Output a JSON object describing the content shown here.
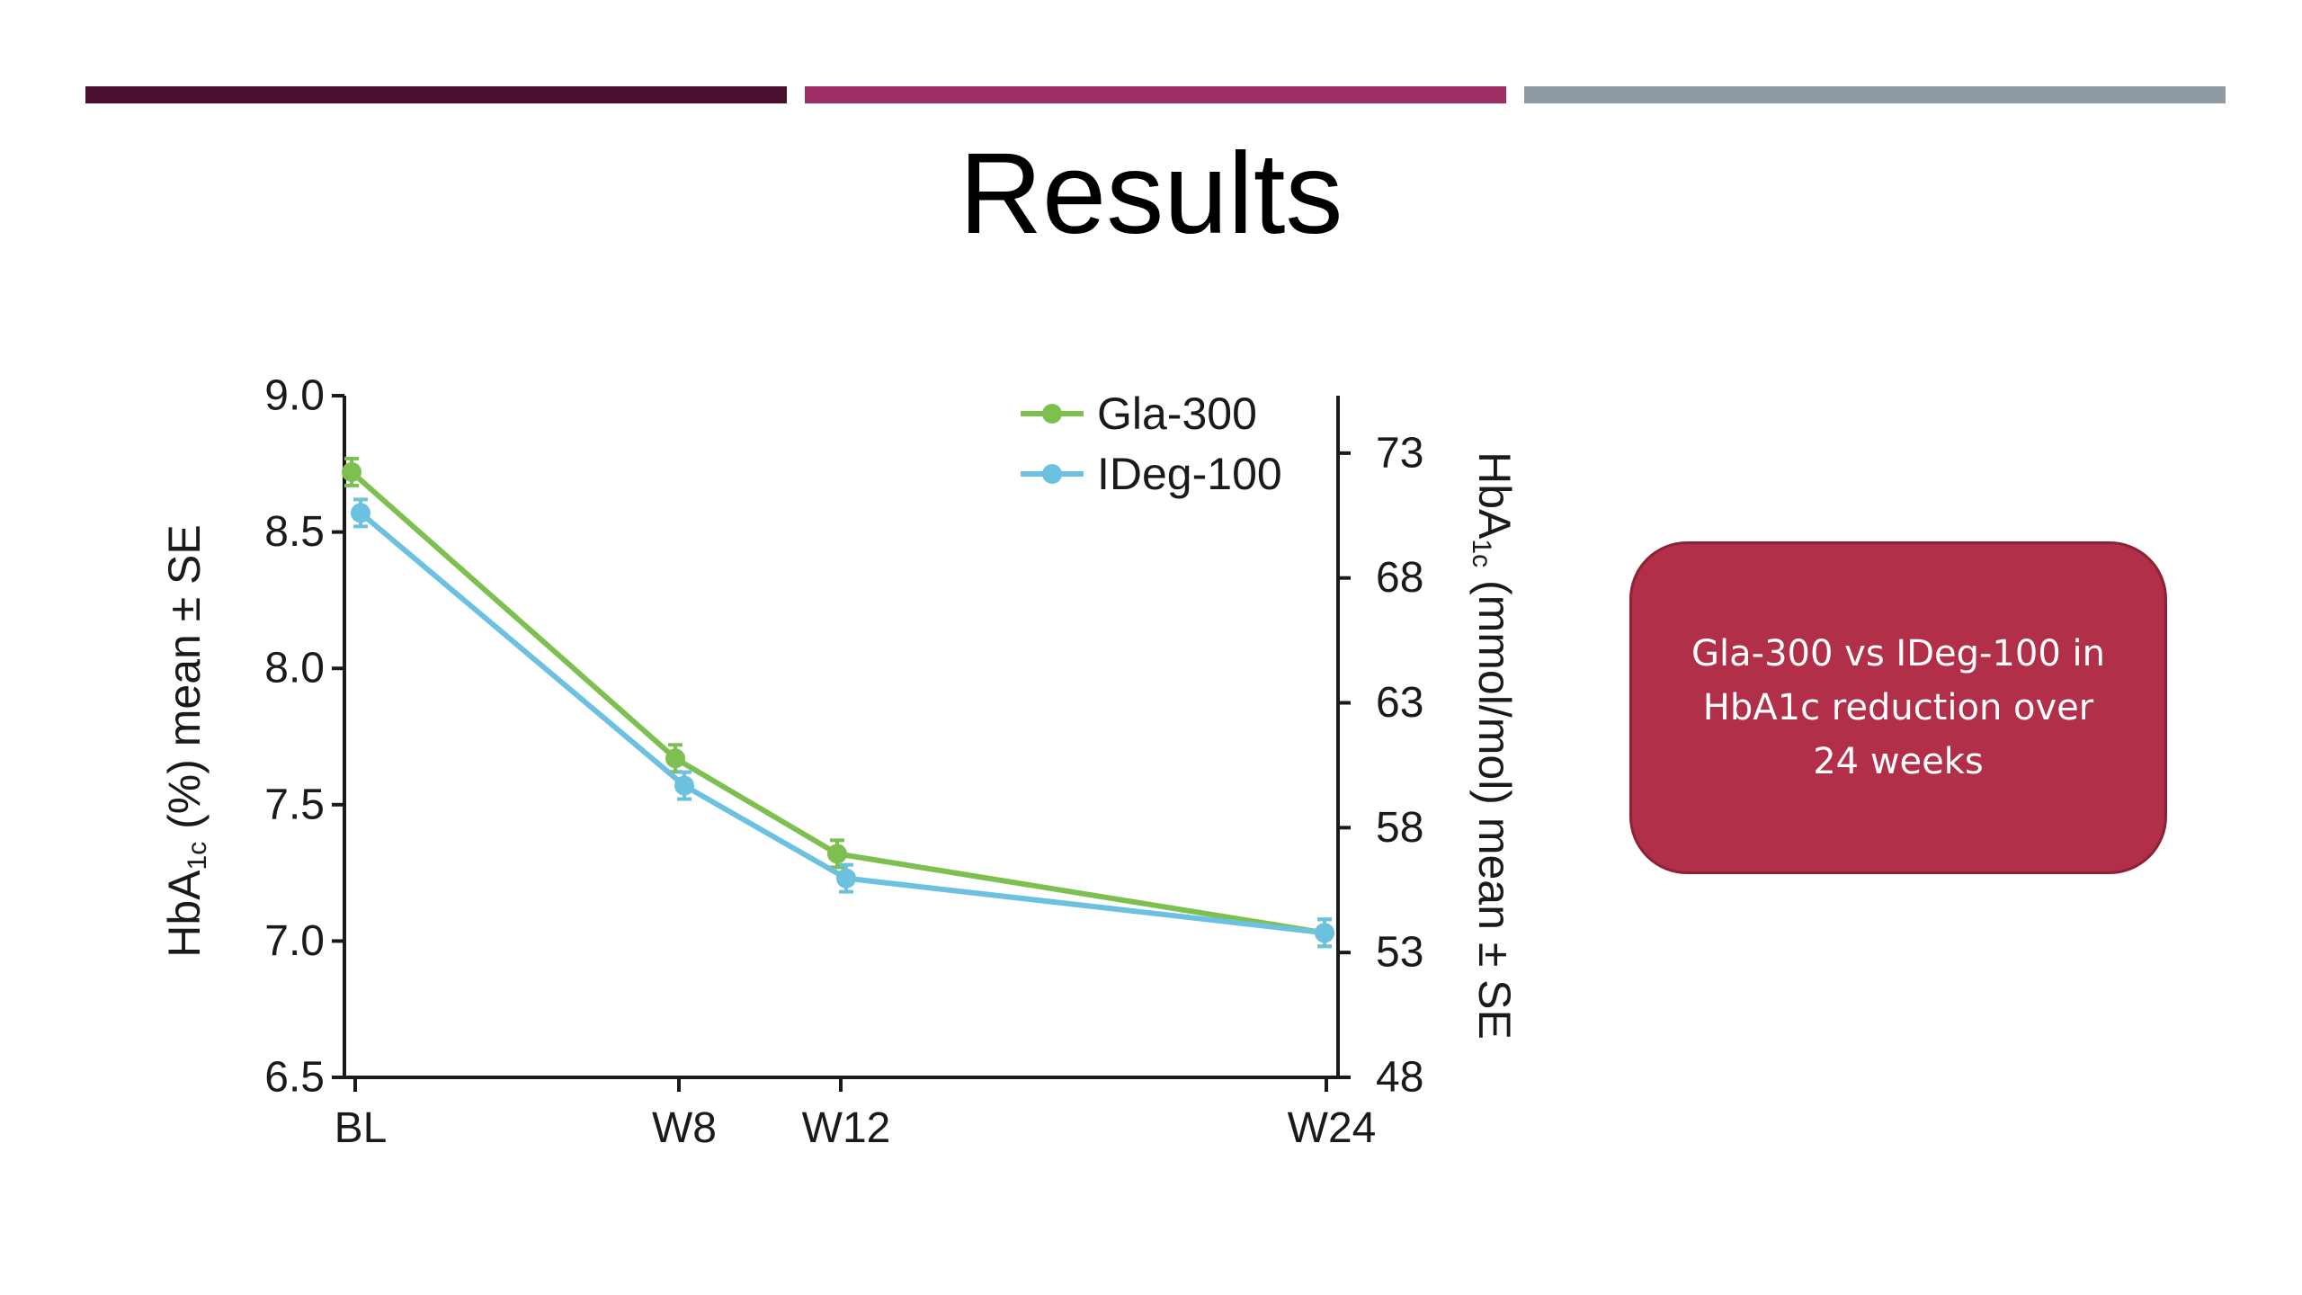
{
  "slide": {
    "title": "Results",
    "accent_colors": [
      "#4a1030",
      "#9e2f64",
      "#8f9aa2"
    ],
    "callout": {
      "text": "Gla-300 vs IDeg-100 in HbA1c reduction over 24 weeks",
      "color": "#b12f48"
    }
  },
  "chart_data": {
    "type": "line",
    "categories": [
      "BL",
      "W8",
      "W12",
      "W24"
    ],
    "x": [
      0,
      8,
      12,
      24
    ],
    "series": [
      {
        "name": "Gla-300",
        "color": "#7dc050",
        "values": [
          8.72,
          7.67,
          7.32,
          7.03
        ]
      },
      {
        "name": "IDeg-100",
        "color": "#6cc0e0",
        "values": [
          8.57,
          7.57,
          7.23,
          7.03
        ]
      }
    ],
    "ylabel_left": {
      "main": "HbA",
      "sub": "1c",
      "rest": " (%) mean ± SE"
    },
    "ylabel_right": {
      "main": "HbA",
      "sub": "1c",
      "rest": " (mmol/mol)  mean ± SE"
    },
    "ylim": [
      6.5,
      9.0
    ],
    "yticks_left": [
      "6.5",
      "7.0",
      "7.5",
      "8.0",
      "8.5",
      "9.0"
    ],
    "yticks_right": [
      "48",
      "53",
      "58",
      "63",
      "68",
      "73"
    ],
    "right_axis_range": [
      48,
      75.3
    ],
    "grid": false,
    "legend": "top-right"
  }
}
